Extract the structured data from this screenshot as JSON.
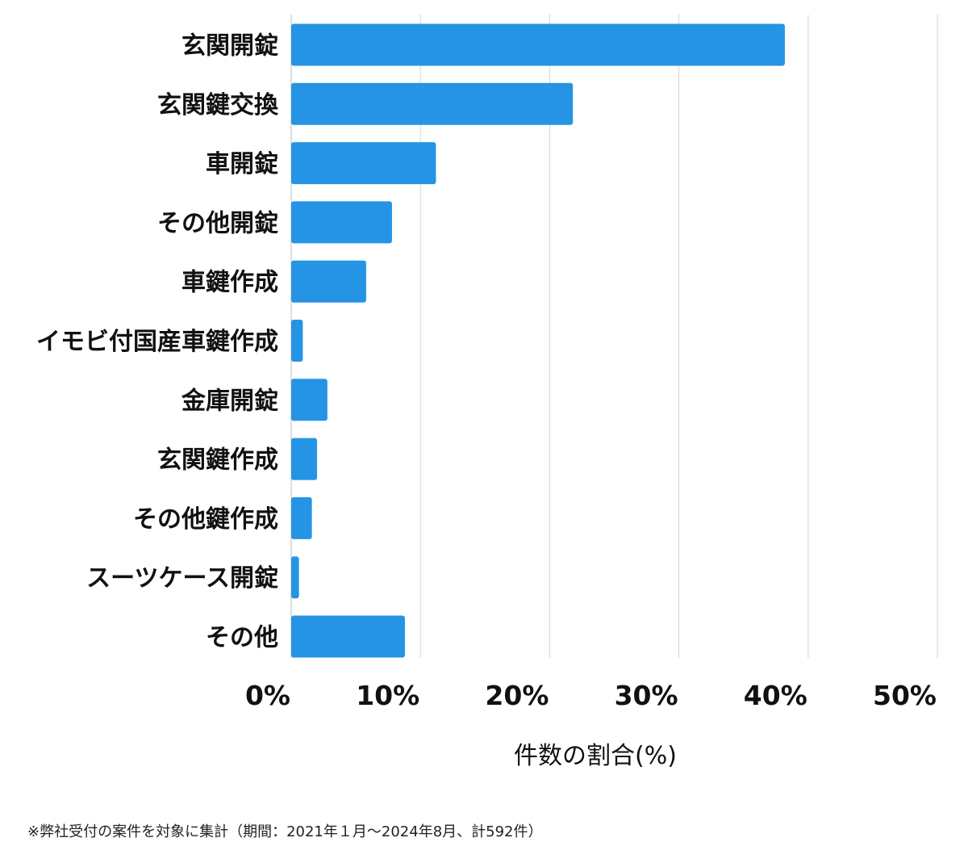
{
  "chart_data": {
    "type": "bar",
    "orientation": "horizontal",
    "categories": [
      "玄関開錠",
      "玄関鍵交換",
      "車開錠",
      "その他開錠",
      "車鍵作成",
      "イモビ付国産車鍵作成",
      "金庫開錠",
      "玄関鍵作成",
      "その他鍵作成",
      "スーツケース開錠",
      "その他"
    ],
    "values": [
      38.2,
      21.8,
      11.2,
      7.8,
      5.8,
      0.9,
      2.8,
      2.0,
      1.6,
      0.6,
      8.8
    ],
    "xlim": [
      0,
      50
    ],
    "xticks": [
      0,
      10,
      20,
      30,
      40,
      50
    ],
    "xtick_labels": [
      "0%",
      "10%",
      "20%",
      "30%",
      "40%",
      "50%"
    ],
    "xlabel": "件数の割合(%)",
    "ylabel": "",
    "title": "",
    "grid": "vertical",
    "bar_color": "#2594e5"
  },
  "footnote": "※弊社受付の案件を対象に集計（期間：2021年１月〜2024年8月、計592件）"
}
